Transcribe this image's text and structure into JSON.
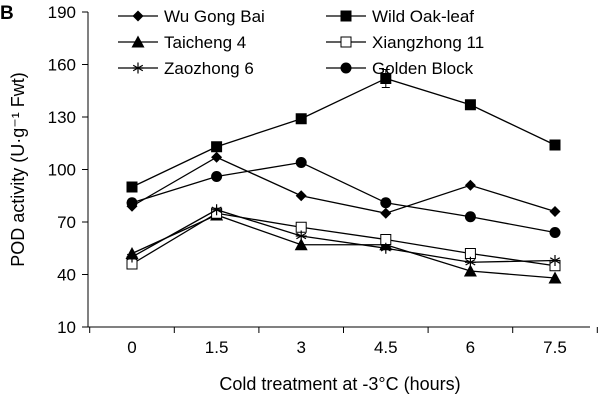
{
  "panel_label": "B",
  "chart_data": {
    "type": "line",
    "title": "",
    "xlabel": "Cold treatment at -3°C (hours)",
    "ylabel": "POD activity (U·g⁻¹ Fwt)",
    "x": [
      0,
      1.5,
      3,
      4.5,
      6,
      7.5
    ],
    "x_tick_labels": [
      "0",
      "1.5",
      "3",
      "4.5",
      "6",
      "7.5"
    ],
    "ylim": [
      10,
      190
    ],
    "y_ticks": [
      10,
      40,
      70,
      100,
      130,
      160,
      190
    ],
    "grid": false,
    "legend_position": "top",
    "series": [
      {
        "name": "Wu Gong Bai",
        "marker": "diamond",
        "values": [
          79,
          107,
          85,
          75,
          91,
          76
        ]
      },
      {
        "name": "Wild Oak-leaf",
        "marker": "square",
        "values": [
          90,
          113,
          129,
          152,
          137,
          114
        ],
        "error_at": [
          152
        ]
      },
      {
        "name": "Taicheng 4",
        "marker": "triangle",
        "values": [
          52,
          74,
          57,
          57,
          42,
          38
        ]
      },
      {
        "name": "Xiangzhong 11",
        "marker": "open-square",
        "values": [
          46,
          75,
          67,
          60,
          52,
          45
        ]
      },
      {
        "name": "Zaozhong 6",
        "marker": "asterisk",
        "values": [
          50,
          77,
          62,
          55,
          47,
          48
        ]
      },
      {
        "name": "Golden Block",
        "marker": "circle",
        "values": [
          81,
          96,
          104,
          81,
          73,
          64
        ]
      }
    ]
  }
}
